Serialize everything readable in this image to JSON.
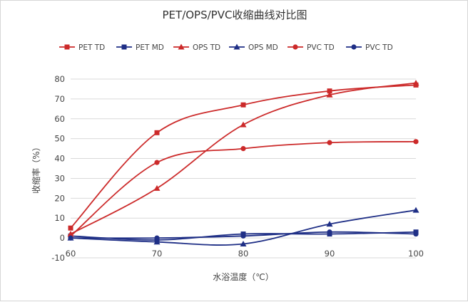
{
  "chart_data": {
    "type": "line",
    "title": "PET/OPS/PVC收缩曲线对比图",
    "xlabel": "水浴温度（℃）",
    "ylabel": "收缩率（%）",
    "x": [
      60,
      70,
      80,
      90,
      100
    ],
    "xlim": [
      60,
      100
    ],
    "ylim": [
      -10,
      80
    ],
    "x_ticks": [
      "60",
      "70",
      "80",
      "90",
      "100"
    ],
    "y_ticks": [
      "-10",
      "0",
      "10",
      "20",
      "30",
      "40",
      "50",
      "60",
      "70",
      "80"
    ],
    "grid": "horizontal",
    "legend_position": "top",
    "series": [
      {
        "name": "PET TD",
        "color": "#cc2a2a",
        "marker": "square",
        "values": [
          5,
          53,
          67,
          74,
          77
        ]
      },
      {
        "name": "PET MD",
        "color": "#1f2f86",
        "marker": "square",
        "values": [
          1,
          -1,
          2,
          2,
          3
        ]
      },
      {
        "name": "OPS TD",
        "color": "#cc2a2a",
        "marker": "triangle",
        "values": [
          2,
          25,
          57,
          72,
          78
        ]
      },
      {
        "name": "OPS MD",
        "color": "#1f2f86",
        "marker": "triangle",
        "values": [
          0,
          -2,
          -3,
          7,
          14
        ]
      },
      {
        "name": "PVC TD",
        "color": "#cc2a2a",
        "marker": "circle",
        "values": [
          1,
          38,
          45,
          48,
          48.5
        ]
      },
      {
        "name": "PVC TD",
        "color": "#1f2f86",
        "marker": "circle",
        "values": [
          0,
          0,
          1,
          3,
          2
        ]
      }
    ]
  }
}
